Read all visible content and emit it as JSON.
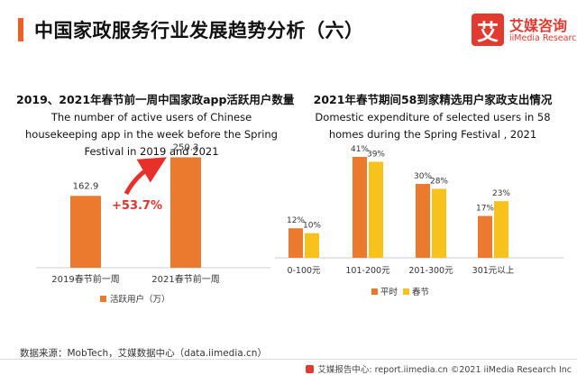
{
  "page": {
    "title": "中国家政服务行业发展趋势分析（六）",
    "accent_color": "#e8602a"
  },
  "logo": {
    "glyph": "艾",
    "cn": "艾媒咨询",
    "en": "iiMedia Research",
    "color": "#e23a2e"
  },
  "footer": {
    "source": "数据来源：MobTech，艾媒数据中心（data.iimedia.cn）",
    "bar": "艾媒报告中心: report.iimedia.cn  ©2021  iiMedia Research  Inc"
  },
  "chart_data": [
    {
      "type": "bar",
      "title": "2019、2021年春节前一周中国家政app活跃用户数量",
      "subtitle": "The number of active users of Chinese housekeeping app in the week before the Spring Festival in 2019 and 2021",
      "categories": [
        "2019春节前一周",
        "2021春节前一周"
      ],
      "series": [
        {
          "name": "活跃用户（万）",
          "values": [
            162.9,
            250.3
          ],
          "color": "#ec7a2e"
        }
      ],
      "value_labels": [
        "162.9",
        "250.3"
      ],
      "annotation": "+53.7%",
      "annotation_color": "#e8302a",
      "ylim": [
        0,
        260
      ],
      "grid": false,
      "legend": "bottom"
    },
    {
      "type": "bar",
      "title": "2021年春节期间58到家精选用户家政支出情况",
      "subtitle": "Domestic expenditure of selected users in 58 homes during the Spring Festival , 2021",
      "categories": [
        "0-100元",
        "101-200元",
        "201-300元",
        "301元以上"
      ],
      "series": [
        {
          "name": "平时",
          "values": [
            12,
            41,
            30,
            17
          ],
          "labels": [
            "12%",
            "41%",
            "30%",
            "17%"
          ],
          "color": "#ec7a2e"
        },
        {
          "name": "春节",
          "values": [
            10,
            39,
            28,
            23
          ],
          "labels": [
            "10%",
            "39%",
            "28%",
            "23%"
          ],
          "color": "#f7c21b"
        }
      ],
      "ylim": [
        0,
        44
      ],
      "grid": false,
      "legend": "bottom"
    }
  ]
}
